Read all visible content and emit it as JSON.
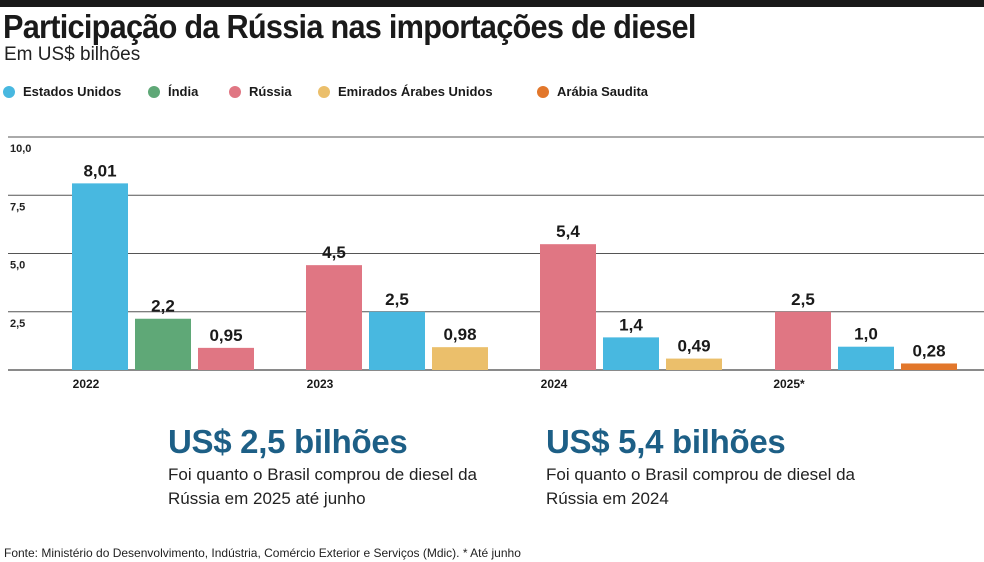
{
  "header": {
    "title": "Participação da Rússia nas importações de diesel",
    "subtitle": "Em US$ bilhões"
  },
  "legend": [
    {
      "label": "Estados Unidos",
      "color": "#48b8e0"
    },
    {
      "label": "Índia",
      "color": "#5fa877"
    },
    {
      "label": "Rússia",
      "color": "#e07683"
    },
    {
      "label": "Emirados Árabes Unidos",
      "color": "#ebbf6b"
    },
    {
      "label": "Arábia Saudita",
      "color": "#e2772b"
    }
  ],
  "chart_data": {
    "type": "bar",
    "title": "Participação da Rússia nas importações de diesel",
    "ylabel": "",
    "xlabel": "",
    "ylim": [
      0,
      10
    ],
    "yticks": [
      "2,5",
      "5,0",
      "7,5",
      "10,0"
    ],
    "grid": true,
    "legend_position": "top",
    "groups": [
      {
        "label": "2022",
        "bars": [
          {
            "series": "Estados Unidos",
            "value": 8.01,
            "label": "8,01"
          },
          {
            "series": "Índia",
            "value": 2.2,
            "label": "2,2"
          },
          {
            "series": "Rússia",
            "value": 0.95,
            "label": "0,95"
          }
        ]
      },
      {
        "label": "2023",
        "bars": [
          {
            "series": "Rússia",
            "value": 4.5,
            "label": "4,5"
          },
          {
            "series": "Estados Unidos",
            "value": 2.5,
            "label": "2,5"
          },
          {
            "series": "Emirados Árabes Unidos",
            "value": 0.98,
            "label": "0,98"
          }
        ]
      },
      {
        "label": "2024",
        "bars": [
          {
            "series": "Rússia",
            "value": 5.4,
            "label": "5,4"
          },
          {
            "series": "Estados Unidos",
            "value": 1.4,
            "label": "1,4"
          },
          {
            "series": "Emirados Árabes Unidos",
            "value": 0.49,
            "label": "0,49"
          }
        ]
      },
      {
        "label": "2025*",
        "bars": [
          {
            "series": "Rússia",
            "value": 2.5,
            "label": "2,5"
          },
          {
            "series": "Estados Unidos",
            "value": 1.0,
            "label": "1,0"
          },
          {
            "series": "Arábia Saudita",
            "value": 0.28,
            "label": "0,28"
          }
        ]
      }
    ]
  },
  "callouts": [
    {
      "value": "US$ 2,5 bilhões",
      "text": "Foi quanto o Brasil comprou de diesel da Rússia em 2025 até junho"
    },
    {
      "value": "US$ 5,4 bilhões",
      "text": "Foi quanto o Brasil comprou de diesel da Rússia em 2024"
    }
  ],
  "footer": {
    "source": "Fonte: Ministério do Desenvolvimento, Indústria, Comércio Exterior e Serviços (Mdic). * Até junho"
  }
}
